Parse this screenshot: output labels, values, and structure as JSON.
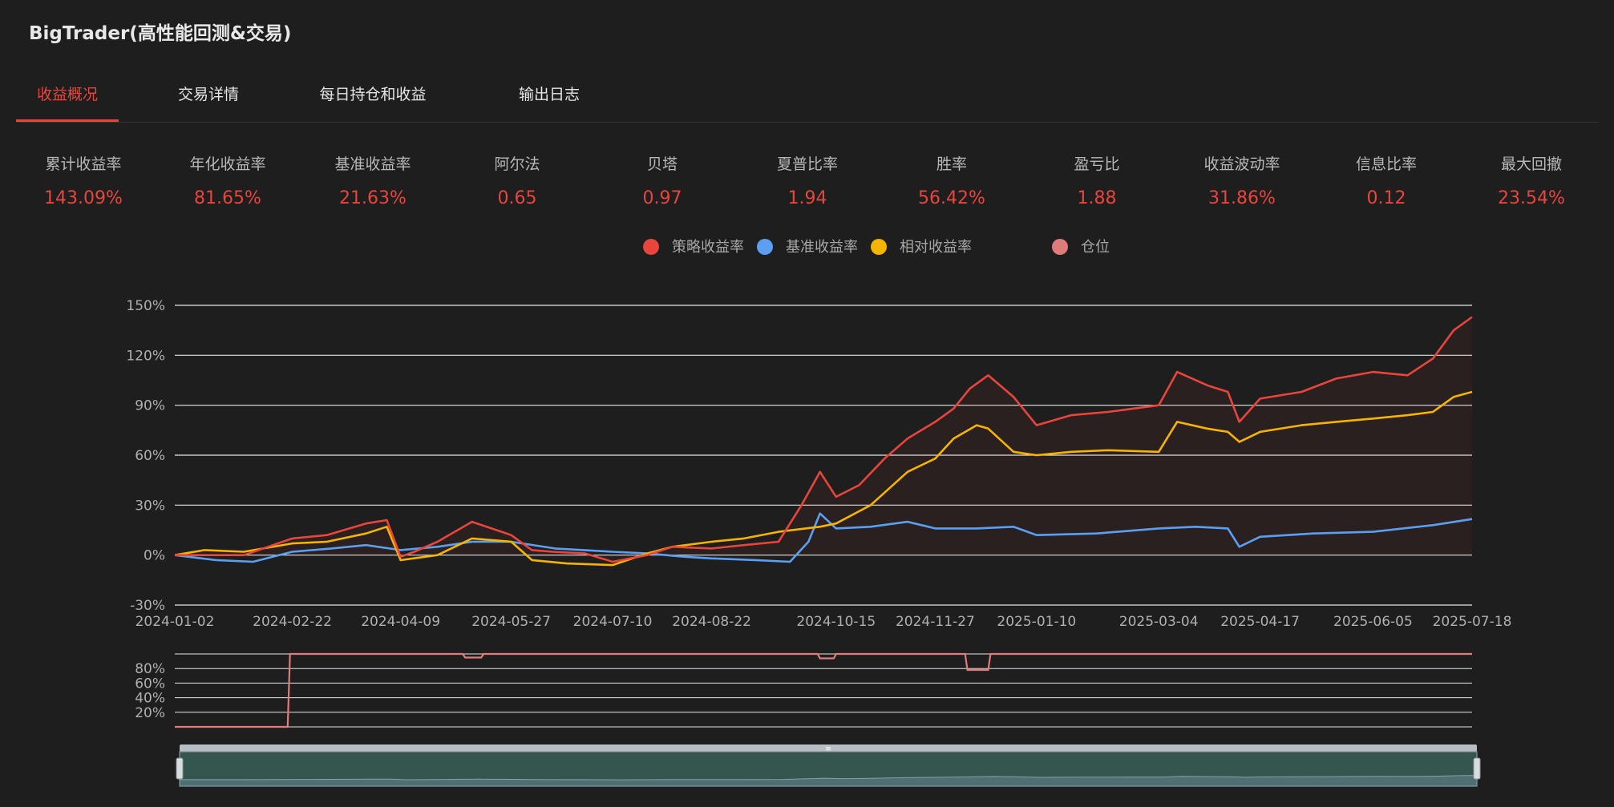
{
  "app": {
    "title": "BigTrader(高性能回测&交易)"
  },
  "tabs": [
    {
      "label": "收益概况",
      "active": true
    },
    {
      "label": "交易详情",
      "active": false
    },
    {
      "label": "每日持仓和收益",
      "active": false
    },
    {
      "label": "输出日志",
      "active": false
    }
  ],
  "metrics": [
    {
      "label": "累计收益率",
      "value": "143.09%"
    },
    {
      "label": "年化收益率",
      "value": "81.65%"
    },
    {
      "label": "基准收益率",
      "value": "21.63%"
    },
    {
      "label": "阿尔法",
      "value": "0.65"
    },
    {
      "label": "贝塔",
      "value": "0.97"
    },
    {
      "label": "夏普比率",
      "value": "1.94"
    },
    {
      "label": "胜率",
      "value": "56.42%"
    },
    {
      "label": "盈亏比",
      "value": "1.88"
    },
    {
      "label": "收益波动率",
      "value": "31.86%"
    },
    {
      "label": "信息比率",
      "value": "0.12"
    },
    {
      "label": "最大回撤",
      "value": "23.54%"
    }
  ],
  "colors": {
    "strategy": "#e8453c",
    "benchmark": "#5b9ff2",
    "relative": "#f5b400",
    "position": "#e07b7b",
    "grid": "#e6e6e6",
    "navigator_fill": "#35554f"
  },
  "chart_data": [
    {
      "type": "line",
      "legend": [
        "策略收益率",
        "基准收益率",
        "相对收益率",
        "仓位"
      ],
      "legend_placement": "top-center",
      "y_tick_labels": [
        "150%",
        "120%",
        "90%",
        "60%",
        "30%",
        "0%",
        "-30%"
      ],
      "ylim": [
        -30,
        150
      ],
      "x_tick_labels": [
        "2024-01-02",
        "2024-02-22",
        "2024-04-09",
        "2024-05-27",
        "2024-07-10",
        "2024-08-22",
        "2024-10-15",
        "2024-11-27",
        "2025-01-10",
        "2025-03-04",
        "2025-04-17",
        "2025-06-05",
        "2025-07-18"
      ],
      "grid": true,
      "series": [
        {
          "name": "策略收益率",
          "x": [
            "2024-01-02",
            "2024-01-15",
            "2024-02-01",
            "2024-02-22",
            "2024-03-08",
            "2024-03-25",
            "2024-04-03",
            "2024-04-09",
            "2024-04-15",
            "2024-04-25",
            "2024-05-10",
            "2024-05-27",
            "2024-06-05",
            "2024-06-14",
            "2024-06-28",
            "2024-07-10",
            "2024-07-25",
            "2024-08-05",
            "2024-08-22",
            "2024-09-05",
            "2024-09-20",
            "2024-09-30",
            "2024-10-08",
            "2024-10-15",
            "2024-10-25",
            "2024-11-05",
            "2024-11-15",
            "2024-11-27",
            "2024-12-05",
            "2024-12-12",
            "2024-12-20",
            "2024-12-31",
            "2025-01-10",
            "2025-01-25",
            "2025-02-10",
            "2025-03-04",
            "2025-03-12",
            "2025-03-25",
            "2025-04-03",
            "2025-04-08",
            "2025-04-17",
            "2025-05-05",
            "2025-05-20",
            "2025-06-05",
            "2025-06-20",
            "2025-07-01",
            "2025-07-10",
            "2025-07-18"
          ],
          "y": [
            0,
            0,
            0,
            10,
            12,
            19,
            21,
            -1,
            2,
            8,
            20,
            12,
            3,
            2,
            1,
            -4,
            0,
            5,
            4,
            6,
            8,
            30,
            50,
            35,
            42,
            58,
            70,
            80,
            88,
            100,
            108,
            95,
            78,
            84,
            86,
            90,
            110,
            102,
            98,
            80,
            94,
            98,
            106,
            110,
            108,
            118,
            135,
            143
          ]
        },
        {
          "name": "基准收益率",
          "x": [
            "2024-01-02",
            "2024-01-20",
            "2024-02-05",
            "2024-02-22",
            "2024-03-10",
            "2024-03-25",
            "2024-04-09",
            "2024-04-25",
            "2024-05-10",
            "2024-05-27",
            "2024-06-15",
            "2024-07-10",
            "2024-07-25",
            "2024-08-10",
            "2024-08-22",
            "2024-09-10",
            "2024-09-25",
            "2024-10-03",
            "2024-10-08",
            "2024-10-15",
            "2024-10-30",
            "2024-11-15",
            "2024-11-27",
            "2024-12-15",
            "2024-12-31",
            "2025-01-10",
            "2025-02-05",
            "2025-03-04",
            "2025-03-20",
            "2025-04-03",
            "2025-04-08",
            "2025-04-17",
            "2025-05-10",
            "2025-06-05",
            "2025-07-01",
            "2025-07-18"
          ],
          "y": [
            0,
            -3,
            -4,
            2,
            4,
            6,
            3,
            5,
            8,
            8,
            4,
            2,
            1,
            -1,
            -2,
            -3,
            -4,
            8,
            25,
            16,
            17,
            20,
            16,
            16,
            17,
            12,
            13,
            16,
            17,
            16,
            5,
            11,
            13,
            14,
            18,
            21.63
          ]
        },
        {
          "name": "相对收益率",
          "x": [
            "2024-01-02",
            "2024-01-15",
            "2024-02-01",
            "2024-02-22",
            "2024-03-08",
            "2024-03-25",
            "2024-04-03",
            "2024-04-09",
            "2024-04-25",
            "2024-05-10",
            "2024-05-27",
            "2024-06-05",
            "2024-06-20",
            "2024-07-10",
            "2024-07-25",
            "2024-08-05",
            "2024-08-22",
            "2024-09-05",
            "2024-09-20",
            "2024-10-08",
            "2024-10-15",
            "2024-10-30",
            "2024-11-15",
            "2024-11-27",
            "2024-12-05",
            "2024-12-15",
            "2024-12-20",
            "2024-12-31",
            "2025-01-10",
            "2025-01-25",
            "2025-02-10",
            "2025-03-04",
            "2025-03-12",
            "2025-03-25",
            "2025-04-03",
            "2025-04-08",
            "2025-04-17",
            "2025-05-05",
            "2025-05-20",
            "2025-06-05",
            "2025-06-20",
            "2025-07-01",
            "2025-07-10",
            "2025-07-18"
          ],
          "y": [
            0,
            3,
            2,
            7,
            8,
            13,
            17,
            -3,
            0,
            10,
            8,
            -3,
            -5,
            -6,
            1,
            5,
            8,
            10,
            14,
            17,
            19,
            30,
            50,
            58,
            70,
            78,
            76,
            62,
            60,
            62,
            63,
            62,
            80,
            76,
            74,
            68,
            74,
            78,
            80,
            82,
            84,
            86,
            95,
            98
          ]
        }
      ]
    },
    {
      "type": "area",
      "name": "仓位",
      "y_tick_labels": [
        "80%",
        "60%",
        "40%",
        "20%"
      ],
      "ylim": [
        0,
        100
      ],
      "x": [
        "2024-01-02",
        "2024-02-20",
        "2024-02-21",
        "2024-05-06",
        "2024-05-07",
        "2024-05-14",
        "2024-05-15",
        "2024-10-07",
        "2024-10-08",
        "2024-10-14",
        "2024-10-15",
        "2024-12-10",
        "2024-12-11",
        "2024-12-20",
        "2024-12-21",
        "2025-07-18"
      ],
      "y": [
        0,
        0,
        100,
        100,
        95,
        95,
        100,
        100,
        94,
        94,
        100,
        100,
        78,
        78,
        100,
        100
      ]
    }
  ]
}
